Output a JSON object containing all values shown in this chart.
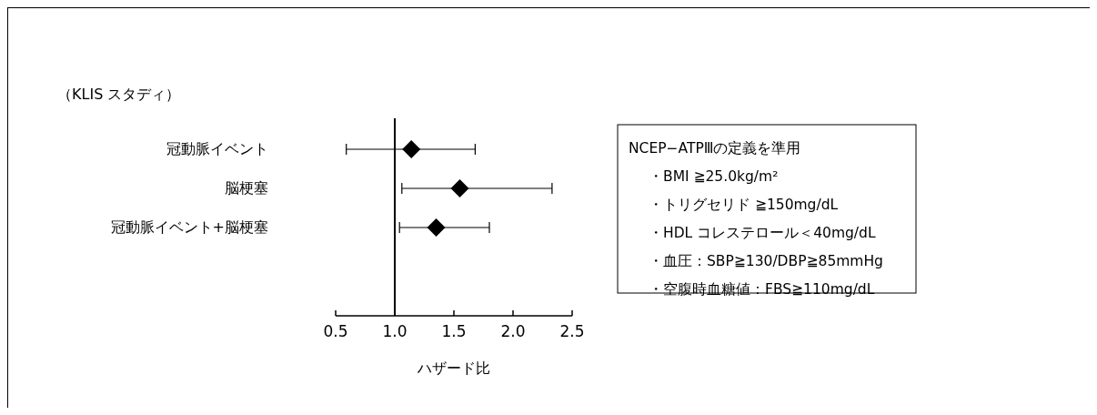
{
  "chart_data": {
    "type": "scatter",
    "orientation": "horizontal",
    "title": "（KLIS スタディ）",
    "xlabel": "ハザード比",
    "categories": [
      "冠動脈イベント",
      "脳梗塞",
      "冠動脈イベント+脳梗塞"
    ],
    "values": [
      1.14,
      1.55,
      1.35
    ],
    "errors": [
      [
        0.59,
        1.68
      ],
      [
        1.06,
        2.33
      ],
      [
        1.04,
        1.8
      ]
    ],
    "color": "#000000",
    "marker": "diamond",
    "xlim": [
      0.5,
      2.5
    ],
    "xticks": [
      0.5,
      {
        "value": 1,
        "label": "1.0"
      },
      1.5,
      {
        "value": 2,
        "label": "2.0"
      },
      2.5
    ],
    "ref_lines": [
      {
        "axis": "x",
        "value": 1.0
      }
    ],
    "annotations": [
      "NCEP−ATPⅢの定義を準用",
      "・BMI ≧25.0kg/m²",
      "・トリグセリド ≧150mg/dL",
      "・HDL コレステロール＜40mg/dL",
      "・血圧：SBP≧130/DBP≧85mmHg",
      "・空腹時血糖値：FBS≧110mg/dL"
    ]
  }
}
